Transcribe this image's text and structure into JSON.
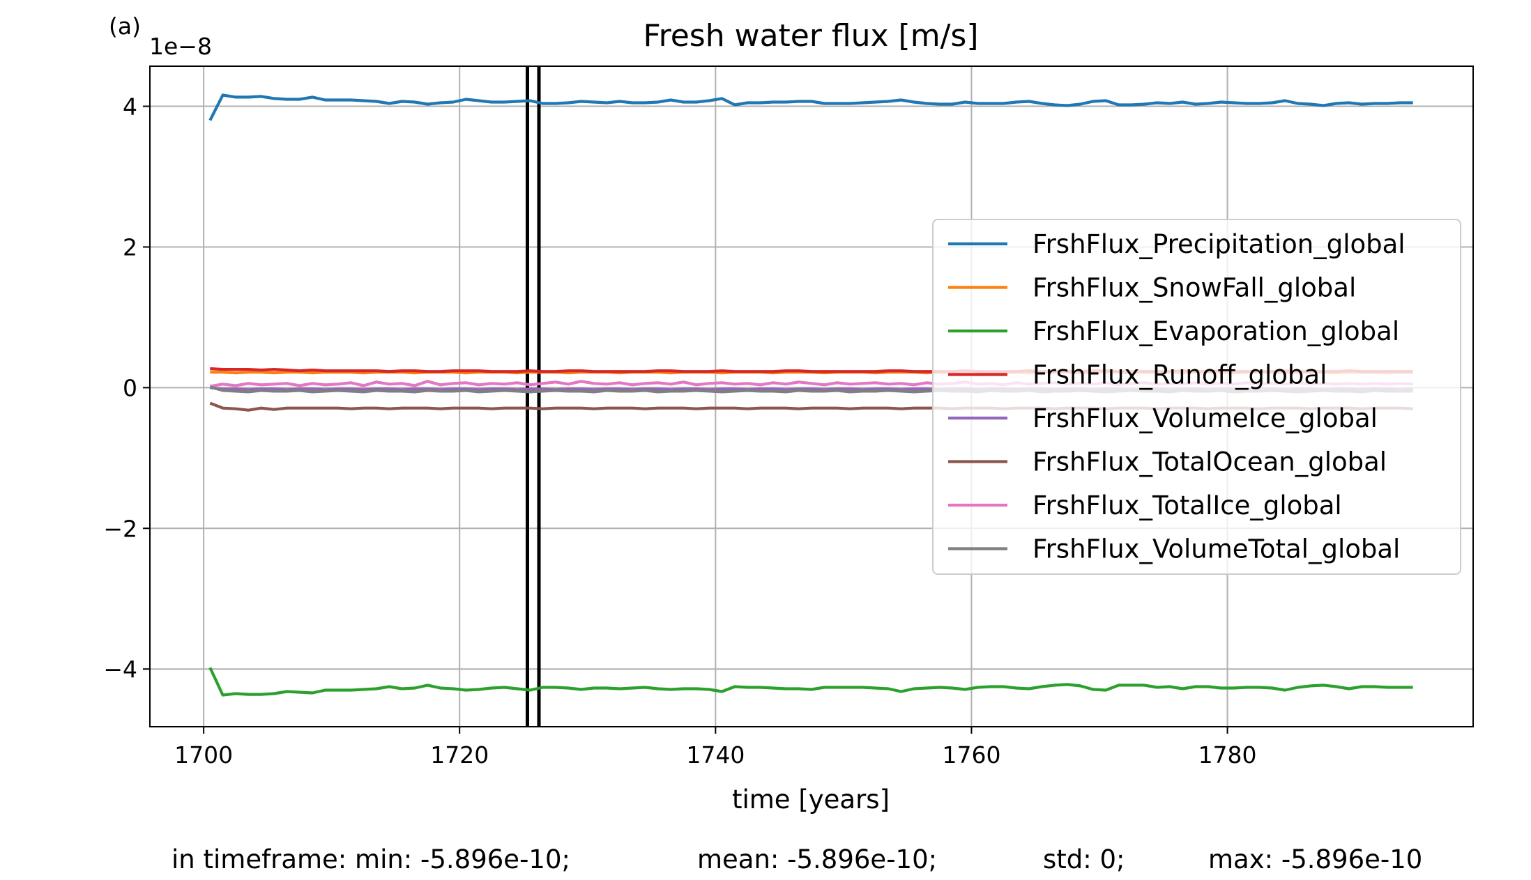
{
  "panel_label": "(a)",
  "stats": {
    "min": "in timeframe: min: -5.896e-10;",
    "mean": "mean: -5.896e-10;",
    "std": "std: 0;",
    "max": "max: -5.896e-10"
  },
  "chart_data": {
    "type": "line",
    "title": "Fresh water flux [m/s]",
    "xlabel": "time [years]",
    "ylabel": "",
    "y_scale_label": "1e−8",
    "xlim": [
      1695.8,
      1799.2
    ],
    "ylim": [
      -4.82,
      4.57
    ],
    "xticks": [
      1700,
      1720,
      1740,
      1760,
      1780
    ],
    "yticks": [
      -4,
      -2,
      0,
      2,
      4
    ],
    "ytick_labels": [
      "−4",
      "−2",
      "0",
      "2",
      "4"
    ],
    "grid": true,
    "legend_position": "center-right",
    "vlines": [
      1725.3,
      1726.2
    ],
    "vline_color": "#000000",
    "x_start": 1700.5,
    "x_step": 1,
    "series": [
      {
        "name": "FrshFlux_Precipitation_global",
        "color": "#1f77b4",
        "values": [
          3.8,
          4.16,
          4.13,
          4.13,
          4.14,
          4.11,
          4.1,
          4.1,
          4.13,
          4.09,
          4.09,
          4.09,
          4.08,
          4.07,
          4.04,
          4.07,
          4.06,
          4.03,
          4.05,
          4.06,
          4.1,
          4.08,
          4.06,
          4.06,
          4.07,
          4.08,
          4.04,
          4.04,
          4.05,
          4.07,
          4.06,
          4.05,
          4.07,
          4.05,
          4.05,
          4.06,
          4.09,
          4.06,
          4.06,
          4.08,
          4.11,
          4.02,
          4.05,
          4.05,
          4.06,
          4.06,
          4.07,
          4.07,
          4.04,
          4.04,
          4.04,
          4.05,
          4.06,
          4.07,
          4.09,
          4.06,
          4.04,
          4.03,
          4.03,
          4.06,
          4.04,
          4.04,
          4.04,
          4.06,
          4.07,
          4.04,
          4.02,
          4.01,
          4.03,
          4.07,
          4.08,
          4.02,
          4.02,
          4.03,
          4.05,
          4.04,
          4.06,
          4.03,
          4.04,
          4.06,
          4.05,
          4.04,
          4.04,
          4.05,
          4.08,
          4.04,
          4.03,
          4.01,
          4.04,
          4.05,
          4.03,
          4.04,
          4.04,
          4.05,
          4.05
        ]
      },
      {
        "name": "FrshFlux_SnowFall_global",
        "color": "#ff7f0e",
        "values": [
          0.22,
          0.22,
          0.21,
          0.22,
          0.22,
          0.21,
          0.22,
          0.22,
          0.21,
          0.22,
          0.22,
          0.22,
          0.21,
          0.22,
          0.22,
          0.22,
          0.21,
          0.22,
          0.22,
          0.22,
          0.21,
          0.22,
          0.22,
          0.22,
          0.21,
          0.22,
          0.22,
          0.22,
          0.21,
          0.22,
          0.22,
          0.22,
          0.21,
          0.22,
          0.22,
          0.22,
          0.21,
          0.22,
          0.22,
          0.22,
          0.21,
          0.22,
          0.22,
          0.22,
          0.21,
          0.22,
          0.22,
          0.22,
          0.21,
          0.22,
          0.22,
          0.22,
          0.21,
          0.22,
          0.22,
          0.22,
          0.21,
          0.22,
          0.22,
          0.22,
          0.21,
          0.22,
          0.22,
          0.22,
          0.21,
          0.22,
          0.22,
          0.22,
          0.21,
          0.22,
          0.22,
          0.22,
          0.21,
          0.22,
          0.22,
          0.22,
          0.21,
          0.22,
          0.22,
          0.22,
          0.21,
          0.22,
          0.22,
          0.22,
          0.21,
          0.22,
          0.22,
          0.22,
          0.21,
          0.22,
          0.22,
          0.22,
          0.21,
          0.22,
          0.22
        ]
      },
      {
        "name": "FrshFlux_Evaporation_global",
        "color": "#2ca02c",
        "values": [
          -3.98,
          -4.37,
          -4.35,
          -4.36,
          -4.36,
          -4.35,
          -4.32,
          -4.33,
          -4.34,
          -4.3,
          -4.3,
          -4.3,
          -4.29,
          -4.28,
          -4.25,
          -4.28,
          -4.27,
          -4.23,
          -4.27,
          -4.28,
          -4.3,
          -4.29,
          -4.27,
          -4.26,
          -4.28,
          -4.3,
          -4.26,
          -4.26,
          -4.27,
          -4.29,
          -4.27,
          -4.27,
          -4.28,
          -4.27,
          -4.26,
          -4.28,
          -4.29,
          -4.28,
          -4.28,
          -4.29,
          -4.32,
          -4.25,
          -4.26,
          -4.26,
          -4.27,
          -4.28,
          -4.28,
          -4.29,
          -4.26,
          -4.26,
          -4.26,
          -4.26,
          -4.27,
          -4.28,
          -4.32,
          -4.28,
          -4.27,
          -4.26,
          -4.27,
          -4.29,
          -4.26,
          -4.25,
          -4.25,
          -4.27,
          -4.28,
          -4.25,
          -4.23,
          -4.22,
          -4.24,
          -4.29,
          -4.3,
          -4.23,
          -4.23,
          -4.23,
          -4.26,
          -4.25,
          -4.28,
          -4.25,
          -4.25,
          -4.27,
          -4.27,
          -4.26,
          -4.26,
          -4.27,
          -4.3,
          -4.26,
          -4.24,
          -4.23,
          -4.25,
          -4.28,
          -4.25,
          -4.25,
          -4.26,
          -4.26,
          -4.26
        ]
      },
      {
        "name": "FrshFlux_Runoff_global",
        "color": "#d62728",
        "values": [
          0.27,
          0.26,
          0.26,
          0.26,
          0.25,
          0.26,
          0.25,
          0.24,
          0.25,
          0.24,
          0.24,
          0.24,
          0.24,
          0.24,
          0.23,
          0.24,
          0.24,
          0.23,
          0.23,
          0.24,
          0.24,
          0.24,
          0.23,
          0.23,
          0.23,
          0.24,
          0.23,
          0.23,
          0.24,
          0.24,
          0.23,
          0.23,
          0.23,
          0.23,
          0.23,
          0.24,
          0.24,
          0.23,
          0.23,
          0.23,
          0.24,
          0.23,
          0.23,
          0.23,
          0.23,
          0.24,
          0.24,
          0.23,
          0.23,
          0.23,
          0.23,
          0.23,
          0.23,
          0.24,
          0.24,
          0.23,
          0.23,
          0.23,
          0.23,
          0.24,
          0.23,
          0.23,
          0.23,
          0.23,
          0.24,
          0.23,
          0.23,
          0.23,
          0.23,
          0.24,
          0.24,
          0.23,
          0.23,
          0.23,
          0.23,
          0.23,
          0.24,
          0.23,
          0.23,
          0.24,
          0.23,
          0.23,
          0.23,
          0.23,
          0.24,
          0.23,
          0.23,
          0.23,
          0.23,
          0.24,
          0.23,
          0.23,
          0.23,
          0.23,
          0.23
        ]
      },
      {
        "name": "FrshFlux_VolumeIce_global",
        "color": "#9467bd",
        "values": [
          0.0,
          -0.02,
          -0.02,
          -0.03,
          -0.02,
          -0.02,
          -0.03,
          -0.02,
          -0.02,
          -0.03,
          -0.02,
          -0.02,
          -0.03,
          -0.02,
          -0.02,
          -0.03,
          -0.02,
          -0.02,
          -0.03,
          -0.02,
          -0.02,
          -0.03,
          -0.02,
          -0.02,
          -0.03,
          -0.02,
          -0.02,
          -0.03,
          -0.02,
          -0.02,
          -0.03,
          -0.02,
          -0.02,
          -0.03,
          -0.02,
          -0.02,
          -0.03,
          -0.02,
          -0.02,
          -0.03,
          -0.02,
          -0.02,
          -0.03,
          -0.02,
          -0.02,
          -0.03,
          -0.02,
          -0.02,
          -0.03,
          -0.02,
          -0.02,
          -0.03,
          -0.02,
          -0.02,
          -0.03,
          -0.02,
          -0.02,
          -0.03,
          -0.02,
          -0.02,
          -0.03,
          -0.02,
          -0.02,
          -0.03,
          -0.02,
          -0.02,
          -0.03,
          -0.02,
          -0.02,
          -0.03,
          -0.02,
          -0.02,
          -0.03,
          -0.02,
          -0.02,
          -0.03,
          -0.02,
          -0.02,
          -0.03,
          -0.02,
          -0.02,
          -0.03,
          -0.02,
          -0.02,
          -0.03,
          -0.02,
          -0.02,
          -0.03,
          -0.02,
          -0.02,
          -0.03,
          -0.02,
          -0.02,
          -0.03,
          -0.02
        ]
      },
      {
        "name": "FrshFlux_TotalOcean_global",
        "color": "#8c564b",
        "values": [
          -0.22,
          -0.29,
          -0.3,
          -0.32,
          -0.29,
          -0.31,
          -0.29,
          -0.29,
          -0.29,
          -0.29,
          -0.29,
          -0.3,
          -0.29,
          -0.29,
          -0.3,
          -0.29,
          -0.29,
          -0.29,
          -0.3,
          -0.29,
          -0.29,
          -0.29,
          -0.3,
          -0.29,
          -0.29,
          -0.29,
          -0.3,
          -0.29,
          -0.29,
          -0.29,
          -0.3,
          -0.29,
          -0.29,
          -0.29,
          -0.3,
          -0.29,
          -0.29,
          -0.29,
          -0.3,
          -0.29,
          -0.29,
          -0.29,
          -0.3,
          -0.29,
          -0.29,
          -0.29,
          -0.3,
          -0.29,
          -0.29,
          -0.29,
          -0.3,
          -0.29,
          -0.29,
          -0.29,
          -0.3,
          -0.29,
          -0.29,
          -0.29,
          -0.3,
          -0.29,
          -0.29,
          -0.29,
          -0.3,
          -0.29,
          -0.29,
          -0.29,
          -0.3,
          -0.29,
          -0.29,
          -0.29,
          -0.3,
          -0.29,
          -0.29,
          -0.29,
          -0.3,
          -0.29,
          -0.29,
          -0.29,
          -0.3,
          -0.29,
          -0.29,
          -0.29,
          -0.3,
          -0.29,
          -0.29,
          -0.29,
          -0.3,
          -0.29,
          -0.29,
          -0.29,
          -0.3,
          -0.29,
          -0.29,
          -0.29,
          -0.3
        ]
      },
      {
        "name": "FrshFlux_TotalIce_global",
        "color": "#e377c2",
        "values": [
          0.02,
          0.05,
          0.03,
          0.06,
          0.04,
          0.05,
          0.06,
          0.03,
          0.06,
          0.04,
          0.05,
          0.07,
          0.03,
          0.08,
          0.05,
          0.06,
          0.03,
          0.09,
          0.04,
          0.06,
          0.07,
          0.04,
          0.06,
          0.05,
          0.07,
          0.04,
          0.06,
          0.08,
          0.05,
          0.09,
          0.06,
          0.05,
          0.07,
          0.04,
          0.06,
          0.07,
          0.05,
          0.08,
          0.04,
          0.06,
          0.07,
          0.05,
          0.06,
          0.04,
          0.07,
          0.05,
          0.08,
          0.06,
          0.04,
          0.07,
          0.05,
          0.06,
          0.07,
          0.05,
          0.06,
          0.04,
          0.07,
          0.05,
          0.06,
          0.08,
          0.05,
          0.06,
          0.04,
          0.07,
          0.05,
          0.06,
          0.07,
          0.05,
          0.06,
          0.05,
          0.07,
          0.04,
          0.06,
          0.07,
          0.05,
          0.06,
          0.05,
          0.07,
          0.05,
          0.06,
          0.05,
          0.07,
          0.05,
          0.06,
          0.05,
          0.07,
          0.05,
          0.06,
          0.05,
          0.06,
          0.05,
          0.06,
          0.05,
          0.06,
          0.05
        ]
      },
      {
        "name": "FrshFlux_VolumeTotal_global",
        "color": "#7f7f7f",
        "values": [
          0.01,
          -0.04,
          -0.05,
          -0.06,
          -0.04,
          -0.05,
          -0.05,
          -0.04,
          -0.06,
          -0.05,
          -0.04,
          -0.05,
          -0.06,
          -0.04,
          -0.05,
          -0.05,
          -0.06,
          -0.04,
          -0.05,
          -0.05,
          -0.04,
          -0.06,
          -0.05,
          -0.04,
          -0.05,
          -0.06,
          -0.05,
          -0.04,
          -0.05,
          -0.05,
          -0.06,
          -0.04,
          -0.05,
          -0.05,
          -0.04,
          -0.06,
          -0.05,
          -0.05,
          -0.04,
          -0.05,
          -0.06,
          -0.05,
          -0.04,
          -0.05,
          -0.05,
          -0.06,
          -0.04,
          -0.05,
          -0.05,
          -0.04,
          -0.06,
          -0.05,
          -0.05,
          -0.04,
          -0.05,
          -0.06,
          -0.05,
          -0.04,
          -0.05,
          -0.05,
          -0.06,
          -0.04,
          -0.05,
          -0.05,
          -0.04,
          -0.06,
          -0.05,
          -0.05,
          -0.04,
          -0.05,
          -0.06,
          -0.05,
          -0.04,
          -0.05,
          -0.05,
          -0.06,
          -0.04,
          -0.05,
          -0.05,
          -0.04,
          -0.06,
          -0.05,
          -0.05,
          -0.04,
          -0.05,
          -0.06,
          -0.05,
          -0.04,
          -0.05,
          -0.05,
          -0.06,
          -0.04,
          -0.05,
          -0.05,
          -0.05
        ]
      }
    ]
  }
}
